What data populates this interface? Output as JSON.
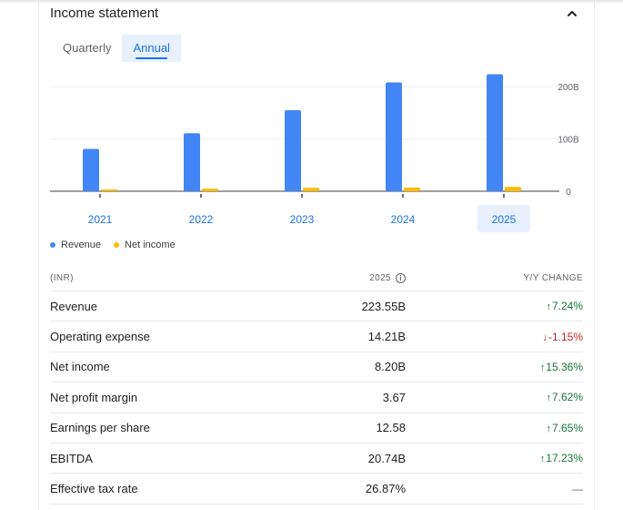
{
  "header": {
    "title": "Income statement"
  },
  "tabs": [
    {
      "label": "Quarterly",
      "active": false
    },
    {
      "label": "Annual",
      "active": true
    }
  ],
  "chart_data": {
    "type": "bar",
    "categories": [
      "2021",
      "2022",
      "2023",
      "2024",
      "2025"
    ],
    "selected_category": "2025",
    "series": [
      {
        "name": "Revenue",
        "color": "#4285f4",
        "values": [
          81,
          111,
          155,
          208,
          223.55
        ]
      },
      {
        "name": "Net income",
        "color": "#fbbc04",
        "values": [
          3.5,
          5,
          6.5,
          7.1,
          8.2
        ]
      }
    ],
    "yticks": [
      {
        "value": 0,
        "label": "0"
      },
      {
        "value": 100,
        "label": "100B"
      },
      {
        "value": 200,
        "label": "200B"
      }
    ],
    "ylim": [
      0,
      240
    ],
    "grid": true,
    "legend": "bottom-left"
  },
  "table": {
    "currency": "(INR)",
    "period": "2025",
    "change_header": "Y/Y CHANGE",
    "rows": [
      {
        "label": "Revenue",
        "value": "223.55B",
        "change": "7.24%",
        "dir": "up"
      },
      {
        "label": "Operating expense",
        "value": "14.21B",
        "change": "-1.15%",
        "dir": "down"
      },
      {
        "label": "Net income",
        "value": "8.20B",
        "change": "15.36%",
        "dir": "up"
      },
      {
        "label": "Net profit margin",
        "value": "3.67",
        "change": "7.62%",
        "dir": "up"
      },
      {
        "label": "Earnings per share",
        "value": "12.58",
        "change": "7.65%",
        "dir": "up"
      },
      {
        "label": "EBITDA",
        "value": "20.74B",
        "change": "17.23%",
        "dir": "up"
      },
      {
        "label": "Effective tax rate",
        "value": "26.87%",
        "change": "—",
        "dir": "flat"
      }
    ]
  },
  "icons": {
    "collapse": "chevron-up-icon",
    "info": "info-icon",
    "up": "arrow-up-icon",
    "down": "arrow-down-icon"
  }
}
